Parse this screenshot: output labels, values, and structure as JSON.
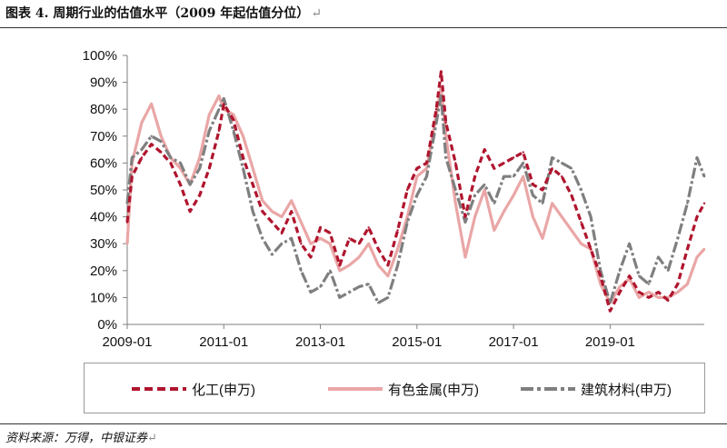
{
  "header": {
    "title": "图表 4. 周期行业的估值水平（2009 年起估值分位）",
    "title_mark": "↵"
  },
  "footer": {
    "source": "资料来源：万得，中银证券",
    "source_mark": "↵"
  },
  "colors": {
    "chem": "#b0152e",
    "metal": "#eaa6a6",
    "construct": "#7f7f7f",
    "axis": "#7f7f7f"
  },
  "chart_data": {
    "type": "line",
    "title": "周期行业的估值水平（2009 年起估值分位）",
    "xlabel": "",
    "ylabel": "",
    "x_ticks": [
      "2009-01",
      "2011-01",
      "2013-01",
      "2015-01",
      "2017-01",
      "2019-01"
    ],
    "x_range": [
      2009.0,
      2020.95
    ],
    "y_ticks": [
      "0%",
      "10%",
      "20%",
      "30%",
      "40%",
      "50%",
      "60%",
      "70%",
      "80%",
      "90%",
      "100%"
    ],
    "ylim": [
      0,
      100
    ],
    "legend_position": "bottom",
    "series": [
      {
        "name": "化工(申万)",
        "style": "dashed",
        "x": [
          2009.0,
          2009.1,
          2009.3,
          2009.5,
          2009.7,
          2009.9,
          2010.1,
          2010.3,
          2010.5,
          2010.7,
          2010.9,
          2011.0,
          2011.2,
          2011.4,
          2011.6,
          2011.8,
          2012.0,
          2012.2,
          2012.4,
          2012.6,
          2012.8,
          2013.0,
          2013.2,
          2013.4,
          2013.6,
          2013.8,
          2014.0,
          2014.2,
          2014.4,
          2014.6,
          2014.8,
          2015.0,
          2015.2,
          2015.4,
          2015.5,
          2015.6,
          2015.8,
          2016.0,
          2016.2,
          2016.4,
          2016.6,
          2016.8,
          2017.0,
          2017.2,
          2017.4,
          2017.6,
          2017.8,
          2018.0,
          2018.2,
          2018.4,
          2018.6,
          2018.8,
          2019.0,
          2019.2,
          2019.4,
          2019.6,
          2019.8,
          2020.0,
          2020.2,
          2020.4,
          2020.6,
          2020.8,
          2020.95
        ],
        "values": [
          38,
          55,
          62,
          67,
          64,
          60,
          52,
          42,
          48,
          58,
          72,
          82,
          76,
          62,
          52,
          42,
          38,
          34,
          42,
          30,
          25,
          36,
          34,
          22,
          32,
          30,
          36,
          28,
          22,
          35,
          50,
          58,
          60,
          80,
          94,
          75,
          60,
          40,
          55,
          65,
          58,
          60,
          62,
          64,
          52,
          50,
          58,
          55,
          48,
          38,
          28,
          18,
          5,
          12,
          18,
          12,
          10,
          12,
          9,
          15,
          28,
          40,
          45
        ]
      },
      {
        "name": "有色金属(申万)",
        "style": "solid",
        "x": [
          2009.0,
          2009.1,
          2009.3,
          2009.5,
          2009.7,
          2009.9,
          2010.1,
          2010.3,
          2010.5,
          2010.7,
          2010.9,
          2011.0,
          2011.2,
          2011.4,
          2011.6,
          2011.8,
          2012.0,
          2012.2,
          2012.4,
          2012.6,
          2012.8,
          2013.0,
          2013.2,
          2013.4,
          2013.6,
          2013.8,
          2014.0,
          2014.2,
          2014.4,
          2014.6,
          2014.8,
          2015.0,
          2015.2,
          2015.4,
          2015.5,
          2015.6,
          2015.8,
          2016.0,
          2016.2,
          2016.4,
          2016.6,
          2016.8,
          2017.0,
          2017.2,
          2017.4,
          2017.6,
          2017.8,
          2018.0,
          2018.2,
          2018.4,
          2018.6,
          2018.8,
          2019.0,
          2019.2,
          2019.4,
          2019.6,
          2019.8,
          2020.0,
          2020.2,
          2020.4,
          2020.6,
          2020.8,
          2020.95
        ],
        "values": [
          30,
          60,
          75,
          82,
          70,
          62,
          58,
          52,
          62,
          78,
          85,
          80,
          78,
          70,
          58,
          46,
          42,
          40,
          46,
          38,
          30,
          32,
          30,
          20,
          22,
          25,
          30,
          22,
          18,
          28,
          40,
          55,
          58,
          78,
          88,
          70,
          45,
          25,
          40,
          50,
          35,
          42,
          48,
          55,
          40,
          32,
          45,
          40,
          35,
          30,
          28,
          15,
          8,
          14,
          17,
          10,
          12,
          10,
          10,
          12,
          15,
          25,
          28
        ]
      },
      {
        "name": "建筑材料(申万)",
        "style": "dashed",
        "x": [
          2009.0,
          2009.1,
          2009.3,
          2009.5,
          2009.7,
          2009.9,
          2010.1,
          2010.3,
          2010.5,
          2010.7,
          2010.9,
          2011.0,
          2011.2,
          2011.4,
          2011.6,
          2011.8,
          2012.0,
          2012.2,
          2012.4,
          2012.6,
          2012.8,
          2013.0,
          2013.2,
          2013.4,
          2013.6,
          2013.8,
          2014.0,
          2014.2,
          2014.4,
          2014.6,
          2014.8,
          2015.0,
          2015.2,
          2015.4,
          2015.5,
          2015.6,
          2015.8,
          2016.0,
          2016.2,
          2016.4,
          2016.6,
          2016.8,
          2017.0,
          2017.2,
          2017.4,
          2017.6,
          2017.8,
          2018.0,
          2018.2,
          2018.4,
          2018.6,
          2018.8,
          2019.0,
          2019.2,
          2019.4,
          2019.6,
          2019.8,
          2020.0,
          2020.2,
          2020.4,
          2020.6,
          2020.8,
          2020.95
        ],
        "values": [
          45,
          62,
          65,
          70,
          68,
          62,
          60,
          52,
          58,
          72,
          80,
          84,
          72,
          58,
          42,
          32,
          26,
          30,
          32,
          20,
          12,
          14,
          20,
          10,
          12,
          14,
          15,
          8,
          10,
          22,
          38,
          48,
          55,
          75,
          85,
          62,
          50,
          38,
          48,
          52,
          45,
          55,
          55,
          60,
          48,
          45,
          62,
          60,
          58,
          50,
          40,
          20,
          8,
          20,
          30,
          18,
          15,
          25,
          20,
          32,
          45,
          62,
          55
        ]
      }
    ]
  },
  "legend": [
    {
      "label": "化工(申万)"
    },
    {
      "label": "有色金属(申万)"
    },
    {
      "label": "建筑材料(申万)"
    }
  ]
}
